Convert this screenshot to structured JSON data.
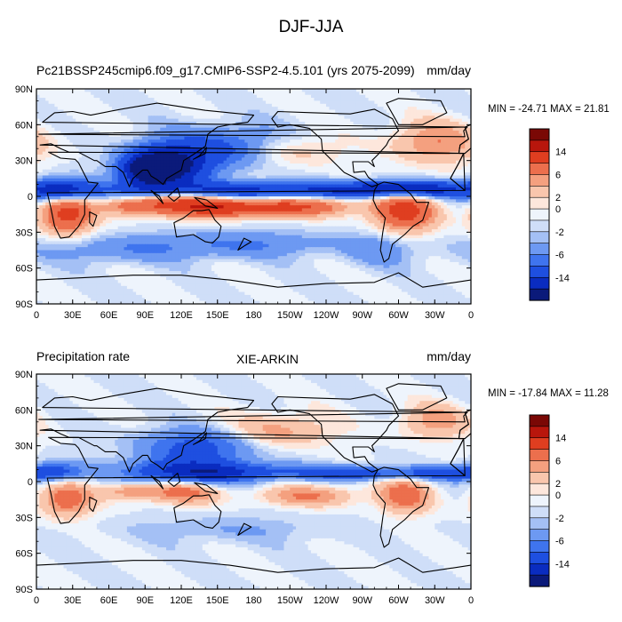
{
  "title": "DJF-JJA",
  "colors": {
    "levels_palette": [
      "#0b1a7a",
      "#0a2cc0",
      "#1e4fe0",
      "#3f74ee",
      "#6d99f2",
      "#a4c0f5",
      "#cfdef8",
      "#eef4fc",
      "#fde7dc",
      "#f9c6ad",
      "#f4a07f",
      "#ec6f4d",
      "#df3e20",
      "#b8160c",
      "#7a0805"
    ],
    "land_outline": "#000000"
  },
  "chart_data": [
    {
      "type": "heatmap",
      "title_left": "Pc21BSSP245cmip6.f09_g17.CMIP6-SSP2-4.5.101 (yrs 2075-2099)",
      "title_center": "",
      "title_right": "mm/day",
      "min_max_label": "MIN = -24.71 MAX =  21.81",
      "x_ticks": [
        "0",
        "30E",
        "60E",
        "90E",
        "120E",
        "150E",
        "180",
        "150W",
        "120W",
        "90W",
        "60W",
        "30W",
        "0"
      ],
      "y_ticks": [
        "90N",
        "60N",
        "30N",
        "0",
        "30S",
        "60S",
        "90S"
      ],
      "colorbar_labels": [
        "14",
        "6",
        "2",
        "0",
        "-2",
        "-6",
        "-14"
      ],
      "features": [
        {
          "lon": 165,
          "lat": 5,
          "v": -12,
          "sx": 70,
          "sy": 5
        },
        {
          "lon": 305,
          "lat": 6,
          "v": -14,
          "sx": 40,
          "sy": 5
        },
        {
          "lon": 110,
          "lat": 25,
          "v": -16,
          "sx": 22,
          "sy": 12
        },
        {
          "lon": 165,
          "lat": 40,
          "v": -8,
          "sx": 40,
          "sy": 12
        },
        {
          "lon": 90,
          "lat": 22,
          "v": -12,
          "sx": 15,
          "sy": 10
        },
        {
          "lon": 22,
          "lat": 5,
          "v": -12,
          "sx": 18,
          "sy": 7
        },
        {
          "lon": 125,
          "lat": -5,
          "v": 11,
          "sx": 28,
          "sy": 8
        },
        {
          "lon": 170,
          "lat": -10,
          "v": 10,
          "sx": 30,
          "sy": 5
        },
        {
          "lon": 225,
          "lat": -8,
          "v": 8,
          "sx": 30,
          "sy": 6
        },
        {
          "lon": 305,
          "lat": -12,
          "v": 12,
          "sx": 18,
          "sy": 12
        },
        {
          "lon": 25,
          "lat": -14,
          "v": 12,
          "sx": 15,
          "sy": 12
        },
        {
          "lon": 80,
          "lat": -8,
          "v": 7,
          "sx": 18,
          "sy": 5
        },
        {
          "lon": 205,
          "lat": 38,
          "v": 6,
          "sx": 30,
          "sy": 10
        },
        {
          "lon": 330,
          "lat": 45,
          "v": 6,
          "sx": 25,
          "sy": 12
        },
        {
          "lon": 170,
          "lat": -40,
          "v": -4,
          "sx": 60,
          "sy": 8
        },
        {
          "lon": 60,
          "lat": -45,
          "v": -3,
          "sx": 50,
          "sy": 8
        },
        {
          "lon": 285,
          "lat": -45,
          "v": -3,
          "sx": 20,
          "sy": 10
        }
      ]
    },
    {
      "type": "heatmap",
      "title_left": "Precipitation rate",
      "title_center": "XIE-ARKIN",
      "title_right": "mm/day",
      "min_max_label": "MIN = -17.84 MAX =  11.28",
      "x_ticks": [
        "0",
        "30E",
        "60E",
        "90E",
        "120E",
        "150E",
        "180",
        "150W",
        "120W",
        "90W",
        "60W",
        "30W",
        "0"
      ],
      "y_ticks": [
        "90N",
        "60N",
        "30N",
        "0",
        "30S",
        "60S",
        "90S"
      ],
      "colorbar_labels": [
        "14",
        "6",
        "2",
        "0",
        "-2",
        "-6",
        "-14"
      ],
      "features": [
        {
          "lon": 125,
          "lat": 8,
          "v": -10,
          "sx": 35,
          "sy": 8
        },
        {
          "lon": 180,
          "lat": 8,
          "v": -6,
          "sx": 50,
          "sy": 5
        },
        {
          "lon": 265,
          "lat": 7,
          "v": -8,
          "sx": 25,
          "sy": 4
        },
        {
          "lon": 335,
          "lat": 7,
          "v": -8,
          "sx": 25,
          "sy": 4
        },
        {
          "lon": 15,
          "lat": 8,
          "v": -7,
          "sx": 18,
          "sy": 6
        },
        {
          "lon": 135,
          "lat": 30,
          "v": -7,
          "sx": 35,
          "sy": 10
        },
        {
          "lon": 120,
          "lat": -8,
          "v": 8,
          "sx": 22,
          "sy": 7
        },
        {
          "lon": 225,
          "lat": -12,
          "v": 6,
          "sx": 28,
          "sy": 6
        },
        {
          "lon": 305,
          "lat": -12,
          "v": 8,
          "sx": 15,
          "sy": 10
        },
        {
          "lon": 25,
          "lat": -15,
          "v": 8,
          "sx": 15,
          "sy": 10
        },
        {
          "lon": 75,
          "lat": -8,
          "v": 5,
          "sx": 15,
          "sy": 5
        },
        {
          "lon": 200,
          "lat": 42,
          "v": 5,
          "sx": 30,
          "sy": 10
        },
        {
          "lon": 330,
          "lat": 50,
          "v": 5,
          "sx": 20,
          "sy": 10
        },
        {
          "lon": 160,
          "lat": -40,
          "v": -2,
          "sx": 60,
          "sy": 8
        }
      ]
    }
  ]
}
